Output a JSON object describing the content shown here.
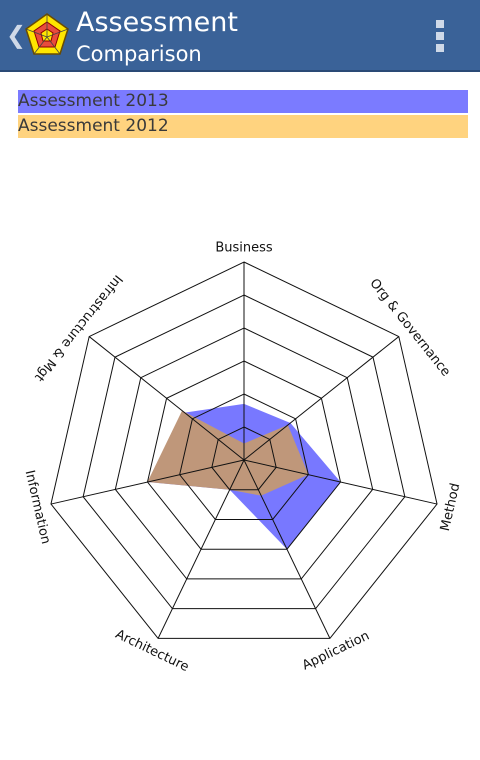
{
  "header": {
    "title": "Assessment",
    "subtitle": "Comparison",
    "back_icon": "chevron-left-icon",
    "app_icon": "radar-chart-icon",
    "menu_icon": "overflow-menu-icon",
    "bar_color": "#3a6298"
  },
  "legend": [
    {
      "label": "Assessment 2013",
      "color": "#7b7bff"
    },
    {
      "label": "Assessment 2012",
      "color": "#ffd37f"
    }
  ],
  "chart_data": {
    "type": "radar",
    "axes": [
      "Business",
      "Org & Governance",
      "Method",
      "Application",
      "Architecture",
      "Information",
      "Infrastructure & Mgt"
    ],
    "rings": 6,
    "series": [
      {
        "name": "Assessment 2013",
        "color": "#7878ff",
        "values": [
          1.7,
          1.8,
          3.0,
          3.0,
          1.0,
          3.0,
          2.3
        ]
      },
      {
        "name": "Assessment 2012",
        "color": "#bf977a",
        "values": [
          0.5,
          1.7,
          2.0,
          1.2,
          1.0,
          3.0,
          2.4
        ]
      }
    ]
  }
}
